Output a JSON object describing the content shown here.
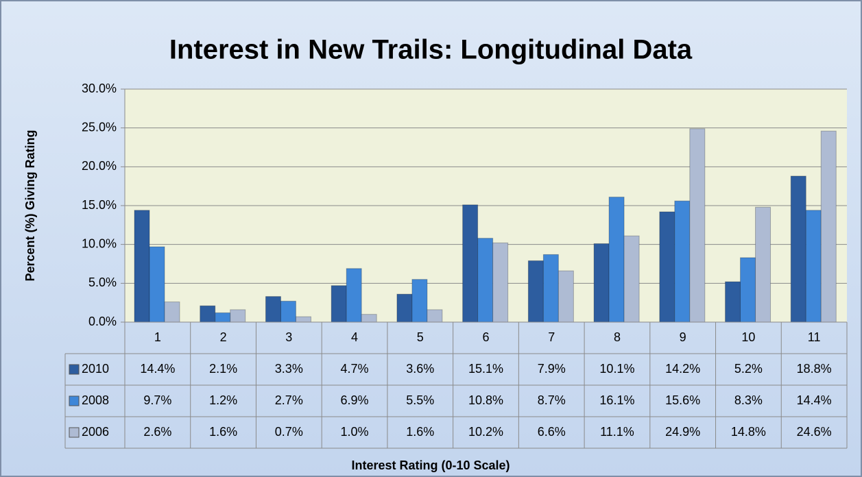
{
  "chart_data": {
    "type": "bar",
    "title": "Interest in New Trails: Longitudinal Data",
    "y_label": "Percent (%) Giving Rating",
    "x_label": "Interest Rating (0-10 Scale)",
    "categories": [
      "1",
      "2",
      "3",
      "4",
      "5",
      "6",
      "7",
      "8",
      "9",
      "10",
      "11"
    ],
    "series": [
      {
        "name": "2010",
        "color": "#2d5d9f",
        "values": [
          14.4,
          2.1,
          3.3,
          4.7,
          3.6,
          15.1,
          7.9,
          10.1,
          14.2,
          5.2,
          18.8
        ],
        "value_labels": [
          "14.4%",
          "2.1%",
          "3.3%",
          "4.7%",
          "3.6%",
          "15.1%",
          "7.9%",
          "10.1%",
          "14.2%",
          "5.2%",
          "18.8%"
        ]
      },
      {
        "name": "2008",
        "color": "#3f87d8",
        "values": [
          9.7,
          1.2,
          2.7,
          6.9,
          5.5,
          10.8,
          8.7,
          16.1,
          15.6,
          8.3,
          14.4
        ],
        "value_labels": [
          "9.7%",
          "1.2%",
          "2.7%",
          "6.9%",
          "5.5%",
          "10.8%",
          "8.7%",
          "16.1%",
          "15.6%",
          "8.3%",
          "14.4%"
        ]
      },
      {
        "name": "2006",
        "color": "#aebbd3",
        "values": [
          2.6,
          1.6,
          0.7,
          1.0,
          1.6,
          10.2,
          6.6,
          11.1,
          24.9,
          14.8,
          24.6
        ],
        "value_labels": [
          "2.6%",
          "1.6%",
          "0.7%",
          "1.0%",
          "1.6%",
          "10.2%",
          "6.6%",
          "11.1%",
          "24.9%",
          "14.8%",
          "24.6%"
        ]
      }
    ],
    "ylim": [
      0,
      30
    ],
    "yticks": [
      {
        "value": 0,
        "label": "0.0%"
      },
      {
        "value": 5,
        "label": "5.0%"
      },
      {
        "value": 10,
        "label": "10.0%"
      },
      {
        "value": 15,
        "label": "15.0%"
      },
      {
        "value": 20,
        "label": "20.0%"
      },
      {
        "value": 25,
        "label": "25.0%"
      },
      {
        "value": 30,
        "label": "30.0%"
      }
    ],
    "grid": true
  }
}
